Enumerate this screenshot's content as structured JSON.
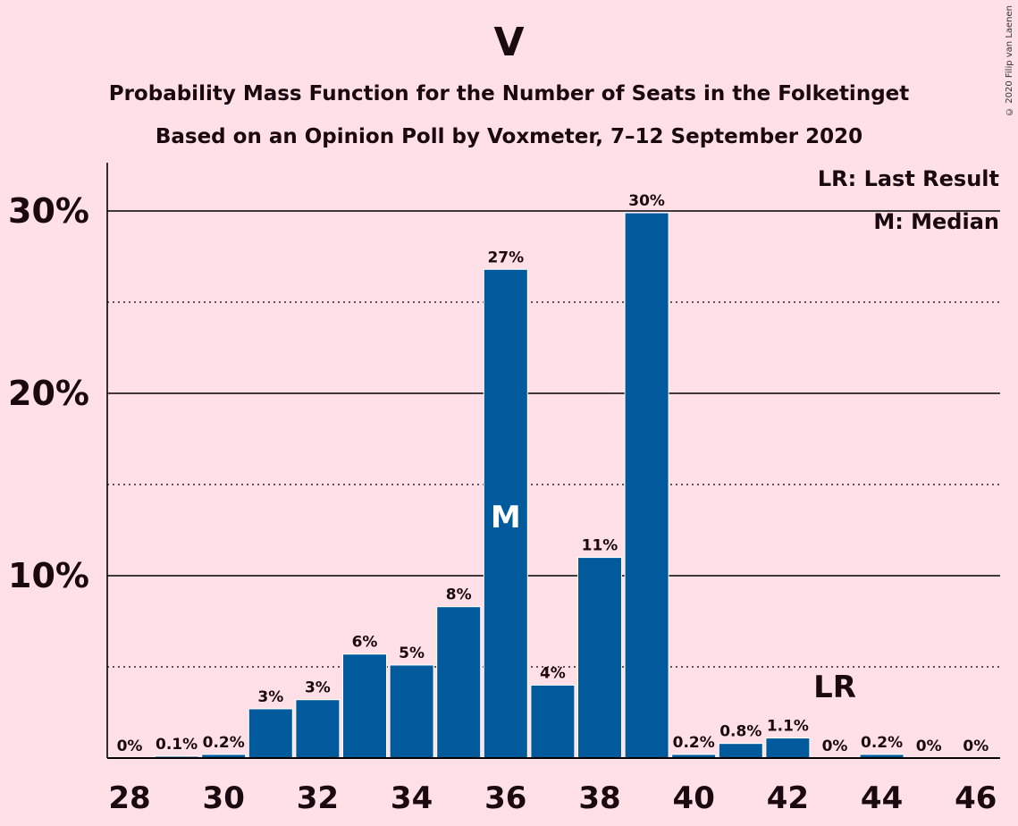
{
  "chart_data": {
    "type": "bar",
    "title": "V",
    "subtitle_lines": [
      "Probability Mass Function for the Number of Seats in the Folketinget",
      "Based on an Opinion Poll by Voxmeter, 7–12 September 2020"
    ],
    "categories": [
      28,
      29,
      30,
      31,
      32,
      33,
      34,
      35,
      36,
      37,
      38,
      39,
      40,
      41,
      42,
      43,
      44,
      45,
      46
    ],
    "values": [
      0,
      0.1,
      0.2,
      2.7,
      3.2,
      5.7,
      5.1,
      8.3,
      26.8,
      4.0,
      11.0,
      29.9,
      0.2,
      0.8,
      1.1,
      0,
      0.2,
      0,
      0
    ],
    "bar_labels": [
      "0%",
      "0.1%",
      "0.2%",
      "3%",
      "3%",
      "6%",
      "5%",
      "8%",
      "27%",
      "4%",
      "11%",
      "30%",
      "0.2%",
      "0.8%",
      "1.1%",
      "0%",
      "0.2%",
      "0%",
      "0%"
    ],
    "x_tick_labels": [
      "28",
      "30",
      "32",
      "34",
      "36",
      "38",
      "40",
      "42",
      "44",
      "46"
    ],
    "x_tick_values": [
      28,
      30,
      32,
      34,
      36,
      38,
      40,
      42,
      44,
      46
    ],
    "y_ticks": [
      10,
      20,
      30
    ],
    "y_tick_labels": [
      "10%",
      "20%",
      "30%"
    ],
    "y_minor_ticks": [
      5,
      15,
      25
    ],
    "ylim": [
      0,
      32.5
    ],
    "median_seat": 36,
    "median_marker": "M",
    "last_result_seat": 43,
    "last_result_marker": "LR",
    "legend": [
      "LR: Last Result",
      "M: Median"
    ],
    "legend_placement": "top-right",
    "bar_color": "#005A9C",
    "background_color": "#FFE0E6"
  },
  "copyright": "© 2020 Filip van Laenen"
}
